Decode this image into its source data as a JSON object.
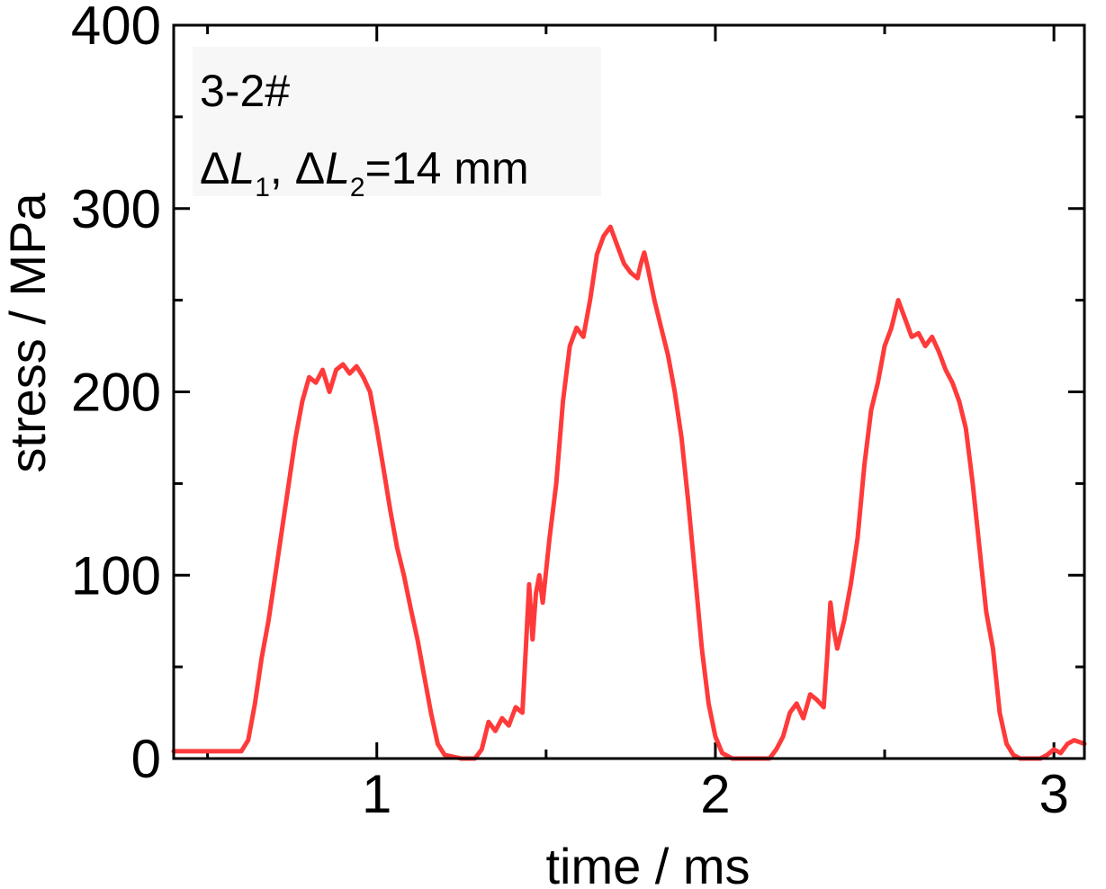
{
  "chart_data": {
    "type": "line",
    "title": "",
    "xlabel": "time / ms",
    "ylabel": "stress / MPa",
    "xlim": [
      0.4,
      3.09
    ],
    "ylim": [
      0,
      400
    ],
    "x_ticks": [
      1,
      2,
      3
    ],
    "y_ticks": [
      0,
      100,
      200,
      300,
      400
    ],
    "x_minor_ticks": [
      0.5,
      1.5,
      2.5
    ],
    "y_minor_ticks": [
      50,
      150,
      250,
      350
    ],
    "grid": false,
    "line_color": "#ff3a3a",
    "annotations": {
      "sample": "3-2#",
      "delta_prefix": "Δ",
      "delta_var": "L",
      "delta_sub1": "1",
      "delta_sep": ", ",
      "delta_sub2": "2",
      "delta_value": "=14 mm"
    },
    "series": [
      {
        "points": [
          [
            0.4,
            4
          ],
          [
            0.55,
            4
          ],
          [
            0.6,
            4
          ],
          [
            0.62,
            10
          ],
          [
            0.64,
            30
          ],
          [
            0.66,
            55
          ],
          [
            0.68,
            75
          ],
          [
            0.7,
            100
          ],
          [
            0.72,
            125
          ],
          [
            0.74,
            150
          ],
          [
            0.76,
            175
          ],
          [
            0.78,
            195
          ],
          [
            0.8,
            208
          ],
          [
            0.82,
            205
          ],
          [
            0.84,
            212
          ],
          [
            0.86,
            200
          ],
          [
            0.88,
            212
          ],
          [
            0.9,
            215
          ],
          [
            0.92,
            210
          ],
          [
            0.94,
            214
          ],
          [
            0.96,
            208
          ],
          [
            0.98,
            200
          ],
          [
            1.0,
            180
          ],
          [
            1.02,
            158
          ],
          [
            1.04,
            135
          ],
          [
            1.06,
            115
          ],
          [
            1.08,
            100
          ],
          [
            1.1,
            82
          ],
          [
            1.12,
            65
          ],
          [
            1.14,
            45
          ],
          [
            1.16,
            25
          ],
          [
            1.18,
            8
          ],
          [
            1.2,
            2
          ],
          [
            1.25,
            0
          ],
          [
            1.29,
            0
          ],
          [
            1.31,
            5
          ],
          [
            1.33,
            20
          ],
          [
            1.35,
            15
          ],
          [
            1.37,
            22
          ],
          [
            1.39,
            18
          ],
          [
            1.41,
            28
          ],
          [
            1.43,
            25
          ],
          [
            1.44,
            60
          ],
          [
            1.45,
            95
          ],
          [
            1.46,
            65
          ],
          [
            1.47,
            90
          ],
          [
            1.48,
            100
          ],
          [
            1.49,
            85
          ],
          [
            1.51,
            120
          ],
          [
            1.53,
            150
          ],
          [
            1.55,
            195
          ],
          [
            1.57,
            225
          ],
          [
            1.59,
            235
          ],
          [
            1.61,
            230
          ],
          [
            1.63,
            250
          ],
          [
            1.65,
            275
          ],
          [
            1.67,
            285
          ],
          [
            1.69,
            290
          ],
          [
            1.71,
            280
          ],
          [
            1.73,
            270
          ],
          [
            1.75,
            265
          ],
          [
            1.77,
            262
          ],
          [
            1.78,
            270
          ],
          [
            1.79,
            276
          ],
          [
            1.8,
            268
          ],
          [
            1.82,
            250
          ],
          [
            1.84,
            235
          ],
          [
            1.86,
            220
          ],
          [
            1.88,
            200
          ],
          [
            1.9,
            175
          ],
          [
            1.92,
            140
          ],
          [
            1.94,
            100
          ],
          [
            1.96,
            60
          ],
          [
            1.98,
            30
          ],
          [
            2.0,
            12
          ],
          [
            2.02,
            3
          ],
          [
            2.05,
            0
          ],
          [
            2.16,
            0
          ],
          [
            2.18,
            5
          ],
          [
            2.2,
            12
          ],
          [
            2.22,
            25
          ],
          [
            2.24,
            30
          ],
          [
            2.26,
            22
          ],
          [
            2.28,
            35
          ],
          [
            2.3,
            32
          ],
          [
            2.32,
            28
          ],
          [
            2.33,
            55
          ],
          [
            2.34,
            85
          ],
          [
            2.35,
            70
          ],
          [
            2.36,
            60
          ],
          [
            2.38,
            75
          ],
          [
            2.4,
            95
          ],
          [
            2.42,
            120
          ],
          [
            2.44,
            160
          ],
          [
            2.46,
            190
          ],
          [
            2.48,
            205
          ],
          [
            2.5,
            225
          ],
          [
            2.52,
            235
          ],
          [
            2.54,
            250
          ],
          [
            2.56,
            240
          ],
          [
            2.58,
            230
          ],
          [
            2.6,
            232
          ],
          [
            2.62,
            225
          ],
          [
            2.64,
            230
          ],
          [
            2.66,
            222
          ],
          [
            2.68,
            212
          ],
          [
            2.7,
            205
          ],
          [
            2.72,
            195
          ],
          [
            2.74,
            180
          ],
          [
            2.76,
            150
          ],
          [
            2.78,
            115
          ],
          [
            2.8,
            80
          ],
          [
            2.82,
            60
          ],
          [
            2.84,
            25
          ],
          [
            2.86,
            8
          ],
          [
            2.88,
            2
          ],
          [
            2.9,
            0
          ],
          [
            2.96,
            0
          ],
          [
            2.98,
            2
          ],
          [
            3.0,
            5
          ],
          [
            3.02,
            3
          ],
          [
            3.04,
            8
          ],
          [
            3.06,
            10
          ],
          [
            3.09,
            8
          ]
        ]
      }
    ]
  }
}
